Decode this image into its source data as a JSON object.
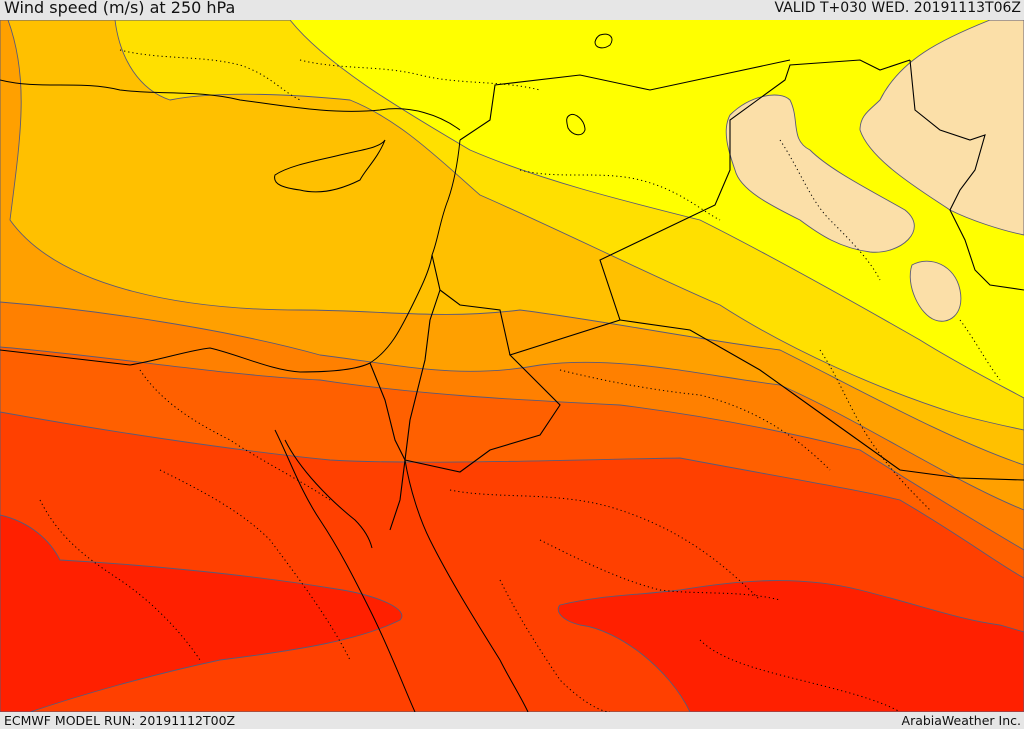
{
  "header": {
    "title": "Wind speed (m/s) at 250 hPa",
    "valid_time": "VALID T+030 WED. 20191113T06Z"
  },
  "footer": {
    "model_run": "ECMWF MODEL RUN: 20191112T00Z",
    "credit": "ArabiaWeather Inc."
  },
  "colors": {
    "band_1": "#fbdfa8",
    "band_2": "#ffff00",
    "band_3": "#ffe000",
    "band_4": "#ffc000",
    "band_5": "#ffa000",
    "band_6": "#ff8000",
    "band_7": "#ff6000",
    "band_8": "#ff4000",
    "band_9": "#ff2000"
  }
}
